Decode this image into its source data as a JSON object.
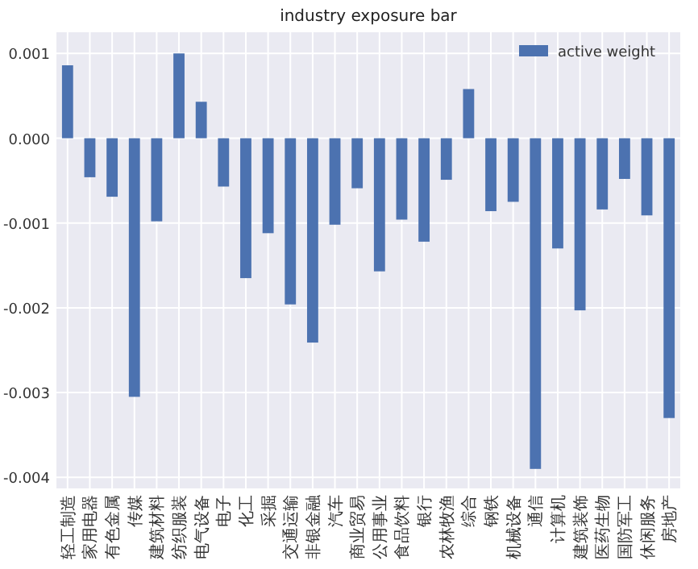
{
  "chart_data": {
    "type": "bar",
    "title": "industry exposure bar",
    "categories": [
      "轻工制造",
      "家用电器",
      "有色金属",
      "传媒",
      "建筑材料",
      "纺织服装",
      "电气设备",
      "电子",
      "化工",
      "采掘",
      "交通运输",
      "非银金融",
      "汽车",
      "商业贸易",
      "公用事业",
      "食品饮料",
      "银行",
      "农林牧渔",
      "综合",
      "钢铁",
      "机械设备",
      "通信",
      "计算机",
      "建筑装饰",
      "医药生物",
      "国防军工",
      "休闲服务",
      "房地产"
    ],
    "series": [
      {
        "name": "active weight",
        "color": "#4c72b0",
        "values": [
          0.00086,
          -0.00046,
          -0.00069,
          -0.00305,
          -0.00098,
          0.001,
          0.00043,
          -0.00057,
          -0.00165,
          -0.00112,
          -0.00196,
          -0.00241,
          -0.00102,
          -0.00059,
          -0.00157,
          -0.00096,
          -0.00122,
          -0.00049,
          0.00058,
          -0.00086,
          -0.00075,
          -0.0039,
          -0.0013,
          -0.00203,
          -0.00084,
          -0.00048,
          -0.00091,
          -0.0033
        ]
      }
    ],
    "ylim": [
      -0.00413,
      0.00125
    ],
    "yticks": [
      {
        "value": -0.004,
        "label": "-0.004"
      },
      {
        "value": -0.003,
        "label": "-0.003"
      },
      {
        "value": -0.002,
        "label": "-0.002"
      },
      {
        "value": -0.001,
        "label": "-0.001"
      },
      {
        "value": 0,
        "label": "0.000"
      },
      {
        "value": 0.001,
        "label": "0.001"
      }
    ],
    "grid": true,
    "legend": "top right"
  }
}
